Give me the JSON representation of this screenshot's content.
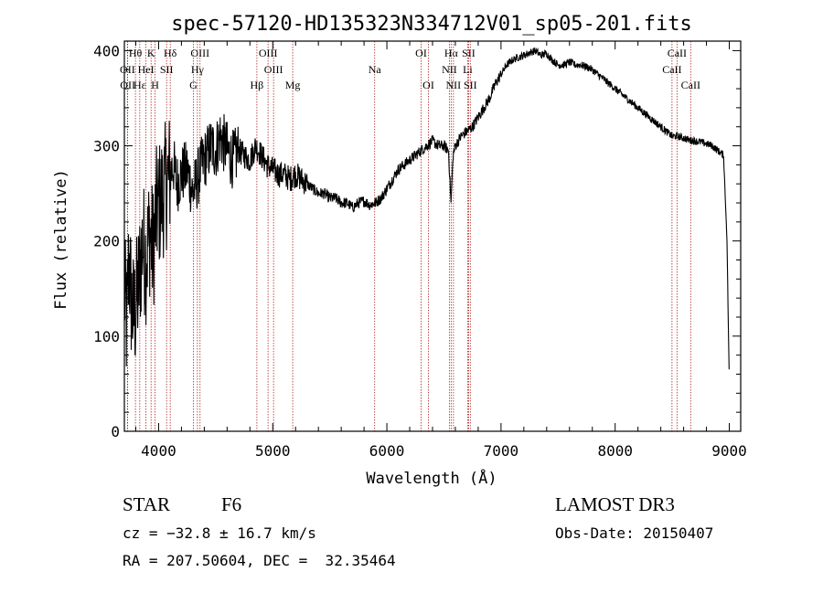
{
  "chart_data": {
    "type": "line",
    "title": "spec-57120-HD135323N334712V01_sp05-201.fits",
    "xlabel": "Wavelength (Å)",
    "ylabel": "Flux (relative)",
    "xlim": [
      3700,
      9100
    ],
    "ylim": [
      0,
      410
    ],
    "xticks": [
      4000,
      5000,
      6000,
      7000,
      8000,
      9000
    ],
    "yticks": [
      0,
      100,
      200,
      300,
      400
    ],
    "grid": false,
    "series": [
      {
        "name": "spectrum",
        "x": [
          3700,
          3720,
          3740,
          3760,
          3780,
          3800,
          3830,
          3860,
          3890,
          3920,
          3950,
          3980,
          4010,
          4040,
          4070,
          4100,
          4130,
          4160,
          4200,
          4250,
          4300,
          4340,
          4380,
          4420,
          4460,
          4500,
          4540,
          4580,
          4620,
          4660,
          4700,
          4750,
          4800,
          4850,
          4900,
          4950,
          5000,
          5050,
          5100,
          5150,
          5200,
          5250,
          5300,
          5350,
          5400,
          5450,
          5500,
          5550,
          5600,
          5650,
          5700,
          5750,
          5800,
          5850,
          5900,
          5950,
          6000,
          6050,
          6100,
          6150,
          6200,
          6250,
          6300,
          6350,
          6400,
          6450,
          6500,
          6540,
          6562,
          6580,
          6600,
          6650,
          6700,
          6750,
          6800,
          6850,
          6900,
          6950,
          7000,
          7050,
          7100,
          7150,
          7200,
          7250,
          7300,
          7350,
          7400,
          7450,
          7500,
          7550,
          7600,
          7650,
          7700,
          7750,
          7800,
          7850,
          7900,
          7950,
          8000,
          8050,
          8100,
          8150,
          8200,
          8250,
          8300,
          8350,
          8400,
          8450,
          8500,
          8550,
          8600,
          8650,
          8700,
          8750,
          8800,
          8850,
          8900,
          8950,
          8980,
          9000
        ],
        "y": [
          150,
          110,
          180,
          140,
          120,
          130,
          160,
          200,
          180,
          210,
          190,
          230,
          240,
          250,
          260,
          270,
          280,
          260,
          270,
          275,
          250,
          265,
          280,
          290,
          300,
          295,
          310,
          300,
          290,
          285,
          295,
          290,
          285,
          300,
          290,
          280,
          275,
          270,
          270,
          265,
          270,
          265,
          260,
          255,
          250,
          250,
          245,
          245,
          240,
          240,
          235,
          240,
          242,
          238,
          240,
          245,
          255,
          265,
          275,
          280,
          285,
          290,
          295,
          300,
          305,
          300,
          300,
          295,
          240,
          290,
          300,
          310,
          315,
          320,
          330,
          340,
          350,
          365,
          375,
          385,
          390,
          393,
          395,
          398,
          400,
          395,
          397,
          390,
          385,
          385,
          388,
          385,
          385,
          383,
          380,
          375,
          370,
          365,
          360,
          355,
          350,
          345,
          340,
          335,
          330,
          325,
          320,
          315,
          310,
          310,
          308,
          306,
          305,
          304,
          302,
          300,
          295,
          290,
          200,
          50
        ]
      }
    ],
    "lines": [
      {
        "name": "H8",
        "label": "Hθ",
        "x": 3797,
        "row": 1
      },
      {
        "name": "OII",
        "label": "OII",
        "x": 3727,
        "row": 2
      },
      {
        "name": "OII-b",
        "label": "OII",
        "x": 3729,
        "row": 3
      },
      {
        "name": "H-epsilon",
        "label": "Hε",
        "x": 3835,
        "row": 3
      },
      {
        "name": "HeI",
        "label": "HeI",
        "x": 3889,
        "row": 2
      },
      {
        "name": "K",
        "label": "K",
        "x": 3934,
        "row": 1
      },
      {
        "name": "H",
        "label": "H",
        "x": 3969,
        "row": 3
      },
      {
        "name": "SII",
        "label": "SII",
        "x": 4070,
        "row": 2
      },
      {
        "name": "H-delta",
        "label": "Hδ",
        "x": 4102,
        "row": 1
      },
      {
        "name": "OIII",
        "label": "OIII",
        "x": 4363,
        "row": 1
      },
      {
        "name": "H-gamma",
        "label": "Hγ",
        "x": 4340,
        "row": 2
      },
      {
        "name": "G",
        "label": "G",
        "x": 4305,
        "row": 3
      },
      {
        "name": "H-beta",
        "label": "Hβ",
        "x": 4861,
        "row": 3
      },
      {
        "name": "OIII-4959",
        "label": "OIII",
        "x": 4959,
        "row": 1
      },
      {
        "name": "OIII-5007",
        "label": "OIII",
        "x": 5007,
        "row": 2
      },
      {
        "name": "Mg",
        "label": "Mg",
        "x": 5175,
        "row": 3
      },
      {
        "name": "Na",
        "label": "Na",
        "x": 5893,
        "row": 2
      },
      {
        "name": "OI",
        "label": "OI",
        "x": 6300,
        "row": 1
      },
      {
        "name": "OI-b",
        "label": "OI",
        "x": 6364,
        "row": 3
      },
      {
        "name": "H-alpha",
        "label": "Hα",
        "x": 6563,
        "row": 1
      },
      {
        "name": "NII",
        "label": "NII",
        "x": 6548,
        "row": 2
      },
      {
        "name": "NII-b",
        "label": "NII",
        "x": 6583,
        "row": 3
      },
      {
        "name": "SII-6716",
        "label": "SII",
        "x": 6716,
        "row": 1
      },
      {
        "name": "Li",
        "label": "Li",
        "x": 6708,
        "row": 2
      },
      {
        "name": "SII-6731",
        "label": "SII",
        "x": 6731,
        "row": 3
      },
      {
        "name": "CaII-8498",
        "label": "CaII",
        "x": 8498,
        "row": 2
      },
      {
        "name": "CaII-8542",
        "label": "CaII",
        "x": 8542,
        "row": 1
      },
      {
        "name": "CaII-8662",
        "label": "CaII",
        "x": 8662,
        "row": 3
      }
    ]
  },
  "info": {
    "object_class": "STAR",
    "subclass": "F6",
    "cz": "cz = −32.8 ± 16.7 km/s",
    "radec": "RA = 207.50604, DEC =  32.35464",
    "survey": "LAMOST DR3",
    "obs_date": "Obs-Date: 20150407"
  },
  "colors": {
    "axis": "#000000",
    "spectrum": "#000000",
    "line_marker": "#b22222"
  }
}
